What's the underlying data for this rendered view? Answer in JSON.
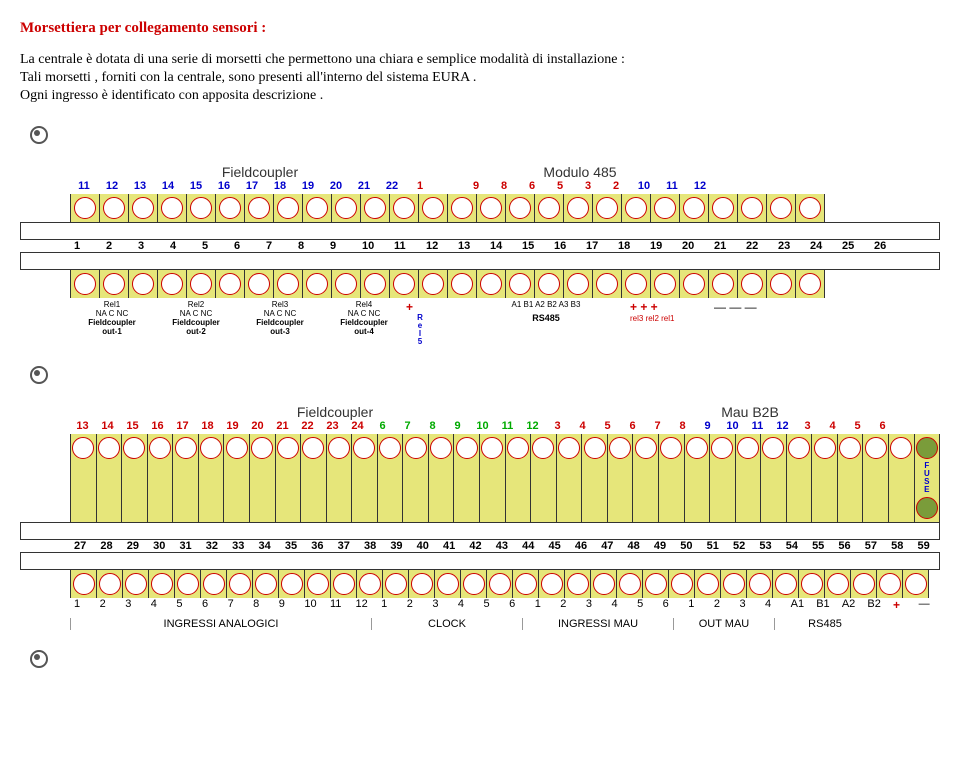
{
  "title": "Morsettiera per collegamento sensori :",
  "intro1": "La centrale è dotata di una serie di morsetti che permettono una chiara e semplice modalità di installazione :",
  "intro2": "Tali morsetti , forniti con la centrale, sono presenti all'interno del sistema EURA .",
  "intro3": "Ogni ingresso è identificato con apposita descrizione .",
  "d1": {
    "hdr1": "Fieldcoupler",
    "hdr2": "Modulo 485",
    "top": [
      "11",
      "12",
      "13",
      "14",
      "15",
      "16",
      "17",
      "18",
      "19",
      "20",
      "21",
      "22",
      "1",
      "",
      "9",
      "8",
      "6",
      "5",
      "3",
      "2",
      "10",
      "11",
      "12"
    ],
    "topcolors": [
      "b",
      "b",
      "b",
      "b",
      "b",
      "b",
      "b",
      "b",
      "b",
      "b",
      "b",
      "b",
      "r",
      "",
      "r",
      "r",
      "r",
      "r",
      "r",
      "r",
      "k",
      "k",
      "k"
    ],
    "mid": [
      "1",
      "2",
      "3",
      "4",
      "5",
      "6",
      "7",
      "8",
      "9",
      "10",
      "11",
      "12",
      "13",
      "14",
      "15",
      "16",
      "17",
      "18",
      "19",
      "20",
      "21",
      "22",
      "23",
      "24",
      "25",
      "26"
    ],
    "relays": [
      {
        "t": "Rel1",
        "n": "NA C NC",
        "b": "Fieldcoupler",
        "o": "out-1"
      },
      {
        "t": "Rel2",
        "n": "NA C NC",
        "b": "Fieldcoupler",
        "o": "out-2"
      },
      {
        "t": "Rel3",
        "n": "NA C NC",
        "b": "Fieldcoupler",
        "o": "out-3"
      },
      {
        "t": "Rel4",
        "n": "NA C NC",
        "b": "Fieldcoupler",
        "o": "out-4"
      }
    ],
    "rel5": "R\ne\nl\n5",
    "rs": "A1 B1 A2 B2 A3 B3",
    "rslbl": "RS485",
    "rel_small": [
      "rel3",
      "rel2",
      "rel1"
    ]
  },
  "d2": {
    "hdr1": "Fieldcoupler",
    "hdr2": "Mau B2B",
    "top": [
      "13",
      "14",
      "15",
      "16",
      "17",
      "18",
      "19",
      "20",
      "21",
      "22",
      "23",
      "24",
      "6",
      "7",
      "8",
      "9",
      "10",
      "11",
      "12",
      "3",
      "4",
      "5",
      "6",
      "7",
      "8",
      "9",
      "10",
      "11",
      "12",
      "3",
      "4",
      "5",
      "6"
    ],
    "topcolors": [
      "r",
      "r",
      "r",
      "r",
      "r",
      "r",
      "r",
      "r",
      "r",
      "r",
      "r",
      "r",
      "g",
      "g",
      "g",
      "g",
      "g",
      "g",
      "g",
      "r",
      "r",
      "r",
      "r",
      "r",
      "r",
      "k",
      "k",
      "k",
      "k",
      "r",
      "r",
      "r",
      "r"
    ],
    "mid": [
      "27",
      "28",
      "29",
      "30",
      "31",
      "32",
      "33",
      "34",
      "35",
      "36",
      "37",
      "38",
      "39",
      "40",
      "41",
      "42",
      "43",
      "44",
      "45",
      "46",
      "47",
      "48",
      "49",
      "50",
      "51",
      "52",
      "53",
      "54",
      "55",
      "56",
      "57",
      "58",
      "59"
    ],
    "bot": [
      "1",
      "2",
      "3",
      "4",
      "5",
      "6",
      "7",
      "8",
      "9",
      "10",
      "11",
      "12",
      "1",
      "2",
      "3",
      "4",
      "5",
      "6",
      "1",
      "2",
      "3",
      "4",
      "5",
      "6",
      "1",
      "2",
      "3",
      "4",
      "A1",
      "B1",
      "A2",
      "B2"
    ],
    "sections": [
      {
        "l": "INGRESSI  ANALOGICI",
        "w": 12
      },
      {
        "l": "CLOCK",
        "w": 6
      },
      {
        "l": "INGRESSI MAU",
        "w": 6
      },
      {
        "l": "OUT MAU",
        "w": 4
      },
      {
        "l": "RS485",
        "w": 4
      }
    ],
    "fuse": "F\nU\nS\nE"
  }
}
